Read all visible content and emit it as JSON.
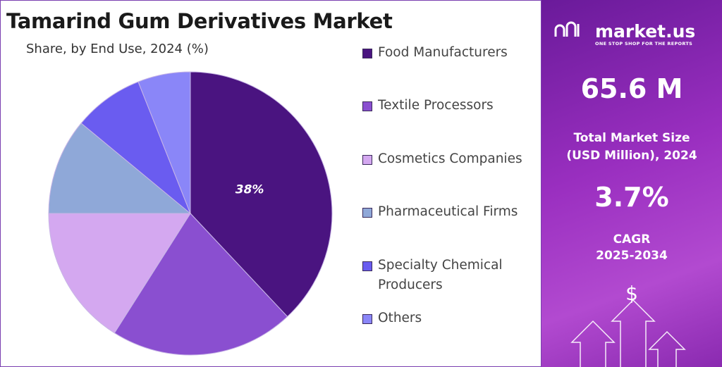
{
  "chart_data": {
    "type": "pie",
    "title": "Tamarind Gum Derivatives Market",
    "subtitle": "Share, by End Use, 2024 (%)",
    "categories": [
      "Food Manufacturers",
      "Textile Processors",
      "Cosmetics Companies",
      "Pharmaceutical Firms",
      "Specialty Chemical Producers",
      "Others"
    ],
    "values": [
      38,
      21,
      16,
      11,
      8,
      6
    ],
    "value_labels": [
      "38%",
      null,
      null,
      null,
      null,
      null
    ],
    "colors": [
      "#4a1480",
      "#8a4fd0",
      "#d4a8f0",
      "#8fa8d8",
      "#6a5cf0",
      "#8a86f8"
    ],
    "legend": "right"
  },
  "sidebar": {
    "brand": "market.us",
    "tagline": "ONE STOP SHOP FOR THE REPORTS",
    "market_size": "65.6 M",
    "market_size_label": [
      "Total Market Size",
      "(USD Million), 2024"
    ],
    "cagr": "3.7%",
    "cagr_label": [
      "CAGR",
      "2025-2034"
    ],
    "icon": "$"
  }
}
